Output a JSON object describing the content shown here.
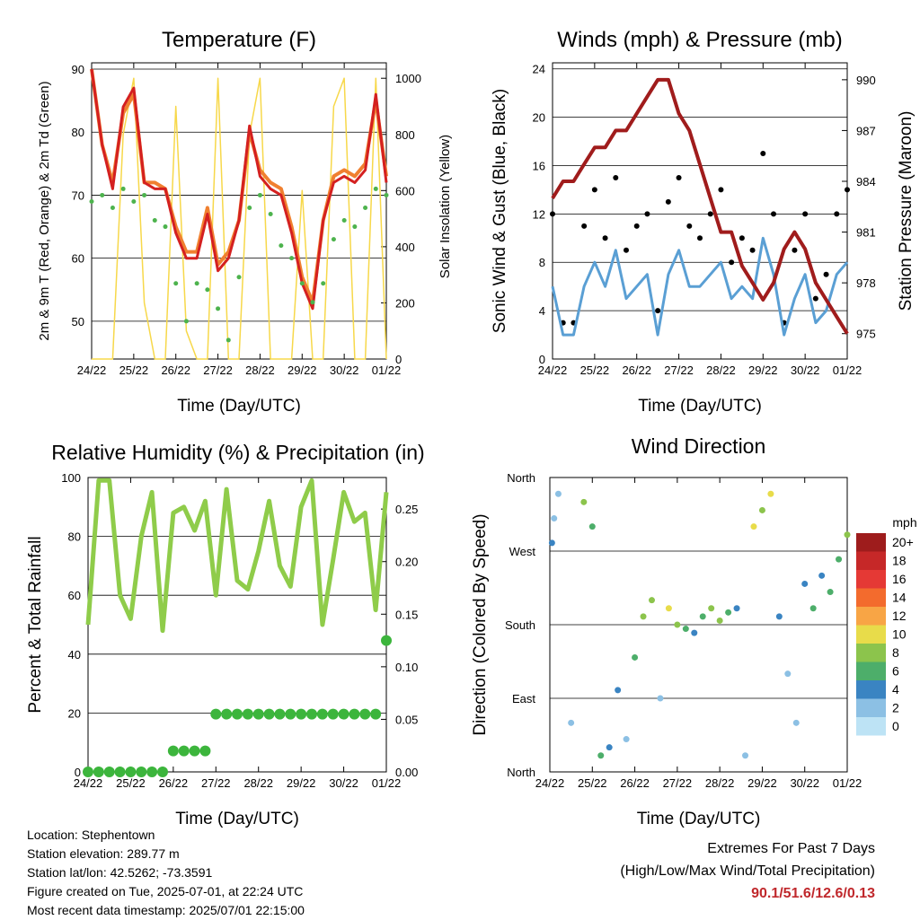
{
  "x_ticks": [
    "24/22",
    "25/22",
    "26/22",
    "27/22",
    "28/22",
    "29/22",
    "30/22",
    "01/22"
  ],
  "chart_data": [
    {
      "type": "line",
      "title": "Temperature (F)",
      "xlabel": "Time (Day/UTC)",
      "ylabel": "2m & 9m T (Red, Orange) & 2m Td (Green)",
      "y2label": "Solar Insolation (Yellow)",
      "ylim": [
        44,
        91
      ],
      "y2lim": [
        0,
        1055
      ],
      "yticks": [
        50,
        60,
        70,
        80,
        90
      ],
      "y2ticks": [
        0,
        200,
        400,
        600,
        800,
        1000
      ],
      "x": [
        0,
        0.25,
        0.5,
        0.75,
        1,
        1.25,
        1.5,
        1.75,
        2,
        2.25,
        2.5,
        2.75,
        3,
        3.25,
        3.5,
        3.75,
        4,
        4.25,
        4.5,
        4.75,
        5,
        5.25,
        5.5,
        5.75,
        6,
        6.25,
        6.5,
        6.75,
        7
      ],
      "series": [
        {
          "name": "2m T",
          "color": "#d42020",
          "values": [
            90,
            78,
            71,
            84,
            87,
            72,
            71,
            71,
            64,
            60,
            60,
            67,
            58,
            60,
            66,
            81,
            73,
            71,
            70,
            64,
            56,
            52,
            66,
            72,
            73,
            72,
            74,
            86,
            72
          ]
        },
        {
          "name": "9m T",
          "color": "#f08030",
          "values": [
            90,
            78,
            72,
            83,
            86,
            72,
            72,
            71,
            65,
            61,
            61,
            68,
            59,
            61,
            66,
            80,
            74,
            72,
            71,
            65,
            57,
            53,
            66,
            73,
            74,
            73,
            75,
            85,
            73
          ]
        },
        {
          "name": "2m Td",
          "color": "#4db34d",
          "values": [
            69,
            70,
            68,
            71,
            69,
            70,
            66,
            65,
            56,
            50,
            56,
            55,
            52,
            47,
            57,
            68,
            70,
            67,
            62,
            60,
            56,
            53,
            56,
            63,
            66,
            65,
            68,
            71,
            70
          ]
        },
        {
          "name": "Solar",
          "color": "#f7d84a",
          "axis": "y2",
          "values": [
            0,
            0,
            0,
            800,
            1000,
            200,
            0,
            0,
            900,
            100,
            0,
            0,
            1000,
            0,
            0,
            800,
            1000,
            0,
            0,
            0,
            600,
            0,
            0,
            900,
            1000,
            0,
            0,
            1000,
            0
          ]
        }
      ]
    },
    {
      "type": "line",
      "title": "Winds (mph) & Pressure (mb)",
      "xlabel": "Time (Day/UTC)",
      "ylabel": "Sonic Wind & Gust (Blue, Black)",
      "y2label": "Station Pressure (Maroon)",
      "ylim": [
        0,
        24.5
      ],
      "y2lim": [
        973.5,
        991
      ],
      "yticks": [
        0,
        4,
        8,
        12,
        16,
        20,
        24
      ],
      "y2ticks": [
        975,
        978,
        981,
        984,
        987,
        990
      ],
      "x": [
        0,
        0.25,
        0.5,
        0.75,
        1,
        1.25,
        1.5,
        1.75,
        2,
        2.25,
        2.5,
        2.75,
        3,
        3.25,
        3.5,
        3.75,
        4,
        4.25,
        4.5,
        4.75,
        5,
        5.25,
        5.5,
        5.75,
        6,
        6.25,
        6.5,
        6.75,
        7
      ],
      "series": [
        {
          "name": "Gust",
          "color": "#000000",
          "values": [
            12,
            3,
            3,
            11,
            14,
            10,
            15,
            9,
            11,
            12,
            4,
            13,
            15,
            11,
            10,
            12,
            14,
            8,
            10,
            9,
            17,
            12,
            3,
            9,
            12,
            5,
            7,
            12,
            14
          ]
        },
        {
          "name": "Wind",
          "color": "#5a9fd4",
          "values": [
            6,
            2,
            2,
            6,
            8,
            6,
            9,
            5,
            6,
            7,
            2,
            7,
            9,
            6,
            6,
            7,
            8,
            5,
            6,
            5,
            10,
            7,
            2,
            5,
            7,
            3,
            4,
            7,
            8
          ]
        },
        {
          "name": "Pressure",
          "color": "#a01c1c",
          "axis": "y2",
          "values": [
            983,
            984,
            984,
            985,
            986,
            986,
            987,
            987,
            988,
            989,
            990,
            990,
            988,
            987,
            985,
            983,
            981,
            981,
            979,
            978,
            977,
            978,
            980,
            981,
            980,
            978,
            977,
            976,
            975
          ]
        }
      ]
    },
    {
      "type": "line",
      "title": "Relative Humidity (%) & Precipitation (in)",
      "xlabel": "Time (Day/UTC)",
      "ylabel": "Percent & Total Rainfall",
      "ylim": [
        0,
        100
      ],
      "y2lim": [
        0,
        0.28
      ],
      "yticks": [
        0,
        20,
        40,
        60,
        80,
        100
      ],
      "y2ticks": [
        "0.00",
        "0.05",
        "0.10",
        "0.15",
        "0.20",
        "0.25"
      ],
      "x": [
        0,
        0.25,
        0.5,
        0.75,
        1,
        1.25,
        1.5,
        1.75,
        2,
        2.25,
        2.5,
        2.75,
        3,
        3.25,
        3.5,
        3.75,
        4,
        4.25,
        4.5,
        4.75,
        5,
        5.25,
        5.5,
        5.75,
        6,
        6.25,
        6.5,
        6.75,
        7
      ],
      "series": [
        {
          "name": "RH",
          "color": "#8fcc4a",
          "values": [
            50,
            99,
            99,
            60,
            52,
            80,
            95,
            48,
            88,
            90,
            82,
            92,
            60,
            96,
            65,
            62,
            75,
            92,
            70,
            63,
            90,
            99,
            50,
            72,
            95,
            85,
            88,
            55,
            95
          ]
        },
        {
          "name": "Precip",
          "color": "#3cb53c",
          "axis": "y2",
          "values": [
            0,
            0,
            0,
            0,
            0,
            0,
            0,
            0,
            0.02,
            0.02,
            0.02,
            0.02,
            0.055,
            0.055,
            0.055,
            0.055,
            0.055,
            0.055,
            0.055,
            0.055,
            0.055,
            0.055,
            0.055,
            0.055,
            0.055,
            0.055,
            0.055,
            0.055,
            0.125
          ]
        }
      ]
    },
    {
      "type": "scatter",
      "title": "Wind Direction",
      "xlabel": "Time (Day/UTC)",
      "ylabel": "Direction (Colored By Speed)",
      "yticks": [
        "North",
        "East",
        "South",
        "West",
        "North"
      ],
      "legend_title": "mph",
      "legend": [
        "20+",
        "18",
        "16",
        "14",
        "12",
        "10",
        "8",
        "6",
        "4",
        "2",
        "0"
      ],
      "legend_colors": [
        "#9e1c1c",
        "#c62828",
        "#e53935",
        "#f36b2d",
        "#f8a545",
        "#e8dc4a",
        "#8cc44c",
        "#4dae6a",
        "#3a84c2",
        "#8cc0e4",
        "#bde3f5"
      ],
      "x": [
        0.05,
        0.1,
        0.2,
        0.5,
        0.8,
        1.0,
        1.2,
        1.4,
        1.6,
        1.8,
        2.0,
        2.2,
        2.4,
        2.6,
        2.8,
        3.0,
        3.2,
        3.4,
        3.6,
        3.8,
        4.0,
        4.2,
        4.4,
        4.6,
        4.8,
        5.0,
        5.2,
        5.4,
        5.6,
        5.8,
        6.0,
        6.2,
        6.4,
        6.6,
        6.8,
        7.0
      ],
      "values": [
        280,
        310,
        340,
        60,
        330,
        300,
        20,
        30,
        100,
        40,
        140,
        190,
        210,
        90,
        200,
        180,
        175,
        170,
        190,
        200,
        185,
        195,
        200,
        20,
        300,
        320,
        340,
        190,
        120,
        60,
        230,
        200,
        240,
        220,
        260,
        290
      ],
      "speeds": [
        4,
        2,
        1,
        2,
        8,
        6,
        6,
        4,
        3,
        1,
        5,
        8,
        7,
        1,
        10,
        7,
        5,
        4,
        6,
        7,
        8,
        5,
        4,
        2,
        9,
        8,
        10,
        4,
        2,
        1,
        4,
        5,
        3,
        6,
        5,
        7
      ]
    }
  ],
  "info": {
    "location": "Location: Stephentown",
    "elevation": "Station elevation: 289.77 m",
    "latlon": "Station lat/lon: 42.5262; -73.3591",
    "created": "Figure created on Tue, 2025-07-01, at 22:24 UTC",
    "recent": "Most recent data timestamp: 2025/07/01 22:15:00"
  },
  "extremes": {
    "title": "Extremes For Past 7 Days",
    "subtitle": "(High/Low/Max Wind/Total Precipitation)",
    "values": "90.1/51.6/12.6/0.13"
  }
}
